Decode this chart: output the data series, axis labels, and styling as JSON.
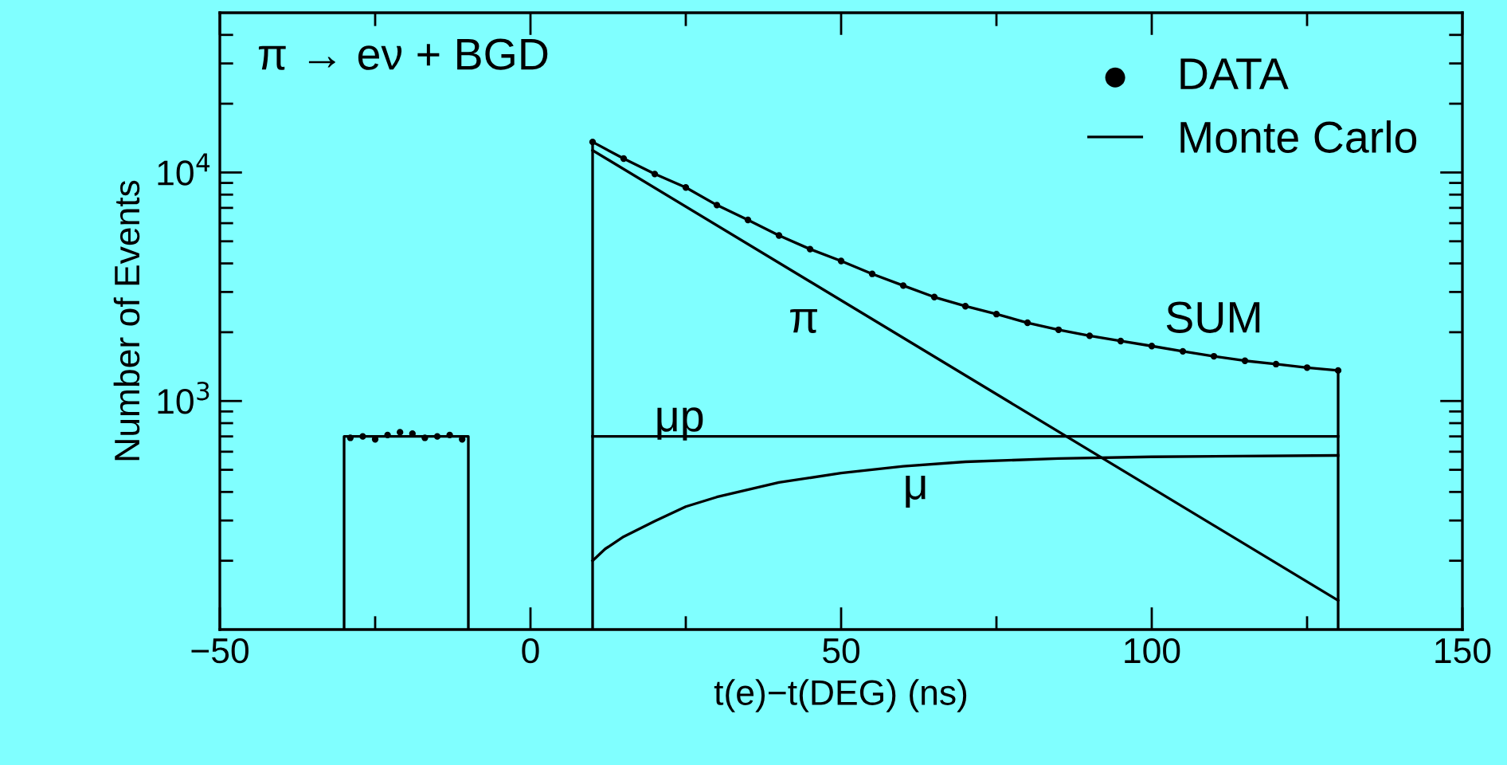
{
  "chart_data": {
    "type": "line",
    "xlabel": "t(e)−t(DEG) (ns)",
    "ylabel": "Number of Events",
    "annotations": [
      "π → eν + BGD",
      "SUM",
      "π",
      "μp",
      "μ"
    ],
    "series": [
      {
        "name": "DATA",
        "type": "scatter",
        "color": "#000000",
        "marker": "circle",
        "x": [
          -29,
          -27,
          -25,
          -23,
          -21,
          -19,
          -17,
          -15,
          -13,
          -11,
          10,
          15,
          20,
          25,
          30,
          35,
          40,
          45,
          50,
          55,
          60,
          65,
          70,
          75,
          80,
          85,
          90,
          95,
          100,
          105,
          110,
          115,
          120,
          125,
          130
        ],
        "values": [
          690,
          700,
          680,
          710,
          730,
          720,
          690,
          700,
          710,
          680,
          13600,
          11500,
          9850,
          8600,
          7200,
          6200,
          5300,
          4620,
          4100,
          3600,
          3200,
          2850,
          2600,
          2400,
          2200,
          2050,
          1930,
          1830,
          1740,
          1650,
          1570,
          1500,
          1450,
          1400,
          1360
        ]
      },
      {
        "name": "Monte Carlo",
        "color": "#000000",
        "x": [
          10,
          10,
          15,
          20,
          25,
          30,
          35,
          40,
          45,
          50,
          55,
          60,
          65,
          70,
          75,
          80,
          85,
          90,
          95,
          100,
          105,
          110,
          115,
          120,
          125,
          130,
          130
        ],
        "values": [
          100,
          13600,
          11500,
          9850,
          8600,
          7200,
          6200,
          5300,
          4620,
          4100,
          3600,
          3200,
          2850,
          2600,
          2400,
          2200,
          2050,
          1930,
          1830,
          1740,
          1650,
          1570,
          1500,
          1450,
          1400,
          1360,
          100
        ]
      },
      {
        "color": "#000000",
        "x": [
          -30,
          -30,
          -10,
          -10
        ],
        "values": [
          100,
          700,
          700,
          100
        ]
      },
      {
        "color": "#000000",
        "x": [
          10,
          130
        ],
        "values": [
          12500,
          134
        ]
      },
      {
        "color": "#000000",
        "x": [
          10,
          130
        ],
        "values": [
          700,
          700
        ]
      },
      {
        "color": "#000000",
        "x": [
          10,
          12,
          15,
          20,
          25,
          30,
          40,
          50,
          60,
          70,
          85,
          100,
          130
        ],
        "values": [
          200,
          225,
          255,
          298,
          345,
          380,
          440,
          484,
          518,
          542,
          560,
          570,
          578
        ]
      }
    ],
    "log": "y",
    "xlim": [
      -50,
      150
    ],
    "ylim": [
      100,
      50000
    ],
    "xticks": [
      -50,
      {
        "value": -25,
        "label": null
      },
      0,
      {
        "value": 25,
        "label": null
      },
      50,
      {
        "value": 75,
        "label": null
      },
      100,
      {
        "value": 125,
        "label": null
      },
      150
    ],
    "yticks": [
      {
        "value": 200,
        "label": null
      },
      {
        "value": 300,
        "label": null
      },
      {
        "value": 400,
        "label": null
      },
      {
        "value": 500,
        "label": null
      },
      {
        "value": 600,
        "label": null
      },
      {
        "value": 700,
        "label": null
      },
      {
        "value": 800,
        "label": null
      },
      {
        "value": 900,
        "label": null
      },
      {
        "value": 1000,
        "label": "10$^{3}$"
      },
      {
        "value": 2000,
        "label": null
      },
      {
        "value": 3000,
        "label": null
      },
      {
        "value": 4000,
        "label": null
      },
      {
        "value": 5000,
        "label": null
      },
      {
        "value": 6000,
        "label": null
      },
      {
        "value": 7000,
        "label": null
      },
      {
        "value": 8000,
        "label": null
      },
      {
        "value": 9000,
        "label": null
      },
      {
        "value": 10000,
        "label": "10$^{4}$"
      },
      {
        "value": 20000,
        "label": null
      },
      {
        "value": 30000,
        "label": null
      },
      {
        "value": 40000,
        "label": null
      }
    ],
    "grid": false,
    "legend": "top right"
  }
}
